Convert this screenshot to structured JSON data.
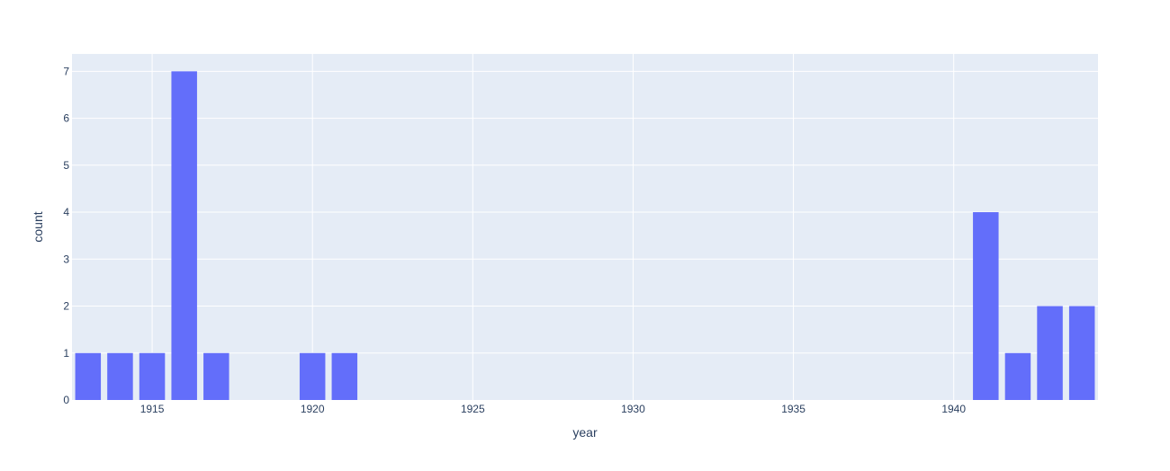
{
  "chart_data": {
    "type": "bar",
    "x": [
      1913,
      1914,
      1915,
      1916,
      1917,
      1920,
      1921,
      1941,
      1942,
      1943,
      1944
    ],
    "values": [
      1,
      1,
      1,
      7,
      1,
      1,
      1,
      4,
      1,
      2,
      2
    ],
    "xlabel": "year",
    "ylabel": "count",
    "xlim": [
      1912.5,
      1944.5
    ],
    "ylim": [
      0,
      7.37
    ],
    "x_ticks": [
      1915,
      1920,
      1925,
      1930,
      1935,
      1940
    ],
    "y_ticks": [
      0,
      1,
      2,
      3,
      4,
      5,
      6,
      7
    ],
    "grid": true,
    "colors": {
      "bar": "#636efa",
      "plot_background": "#e5ecf6",
      "gridline": "#ffffff",
      "text": "#2a3f5f"
    }
  }
}
